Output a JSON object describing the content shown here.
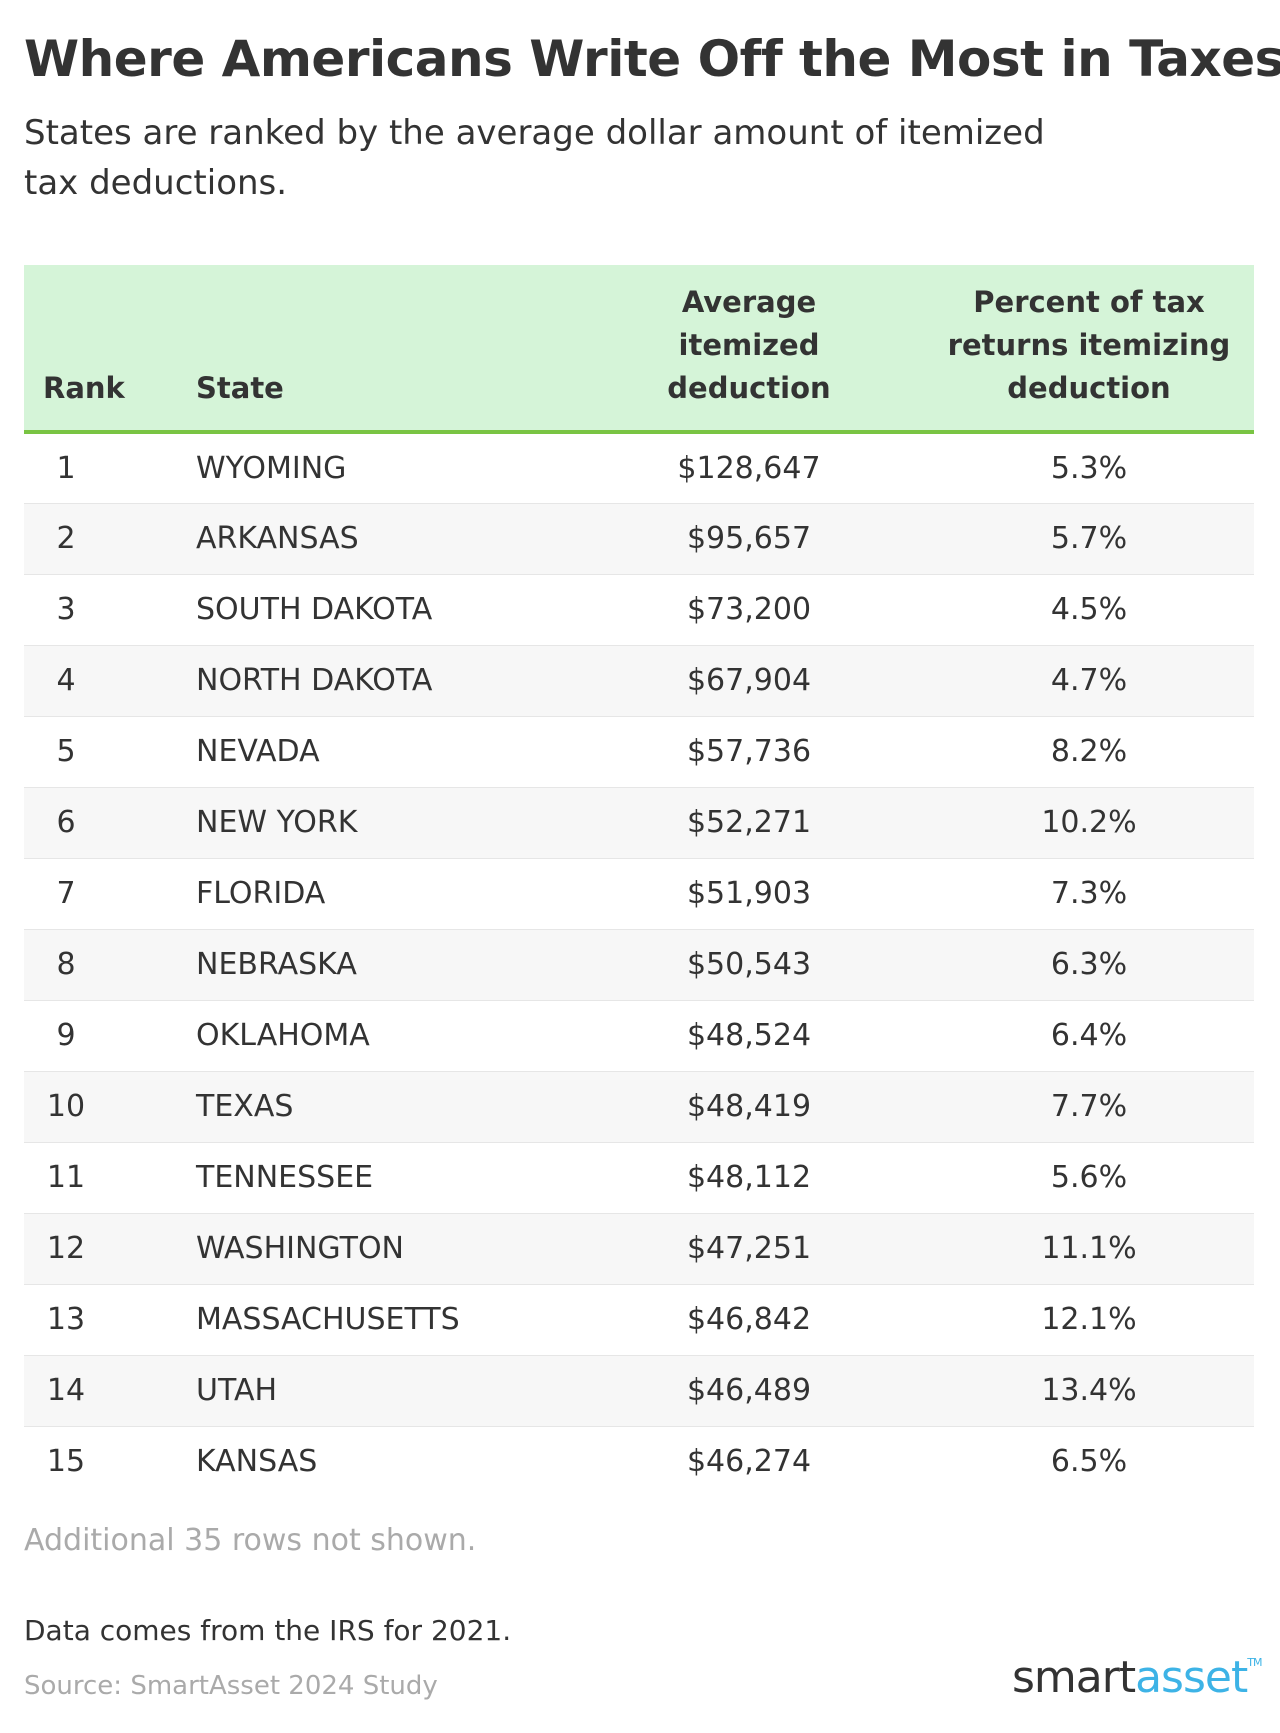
{
  "title": "Where Americans Write Off the Most in Taxes",
  "subtitle": "States are ranked by the average dollar amount of itemized tax deductions.",
  "table": {
    "headers": {
      "rank": "Rank",
      "state": "State",
      "avg": [
        "Average",
        "itemized",
        "deduction"
      ],
      "pct": [
        "Percent of tax",
        "returns itemizing",
        "deduction"
      ]
    },
    "rows": [
      {
        "rank": "1",
        "state": "WYOMING",
        "avg": "$128,647",
        "pct": "5.3%"
      },
      {
        "rank": "2",
        "state": "ARKANSAS",
        "avg": "$95,657",
        "pct": "5.7%"
      },
      {
        "rank": "3",
        "state": "SOUTH DAKOTA",
        "avg": "$73,200",
        "pct": "4.5%"
      },
      {
        "rank": "4",
        "state": "NORTH DAKOTA",
        "avg": "$67,904",
        "pct": "4.7%"
      },
      {
        "rank": "5",
        "state": "NEVADA",
        "avg": "$57,736",
        "pct": "8.2%"
      },
      {
        "rank": "6",
        "state": "NEW YORK",
        "avg": "$52,271",
        "pct": "10.2%"
      },
      {
        "rank": "7",
        "state": "FLORIDA",
        "avg": "$51,903",
        "pct": "7.3%"
      },
      {
        "rank": "8",
        "state": "NEBRASKA",
        "avg": "$50,543",
        "pct": "6.3%"
      },
      {
        "rank": "9",
        "state": "OKLAHOMA",
        "avg": "$48,524",
        "pct": "6.4%"
      },
      {
        "rank": "10",
        "state": "TEXAS",
        "avg": "$48,419",
        "pct": "7.7%"
      },
      {
        "rank": "11",
        "state": "TENNESSEE",
        "avg": "$48,112",
        "pct": "5.6%"
      },
      {
        "rank": "12",
        "state": "WASHINGTON",
        "avg": "$47,251",
        "pct": "11.1%"
      },
      {
        "rank": "13",
        "state": "MASSACHUSETTS",
        "avg": "$46,842",
        "pct": "12.1%"
      },
      {
        "rank": "14",
        "state": "UTAH",
        "avg": "$46,489",
        "pct": "13.4%"
      },
      {
        "rank": "15",
        "state": "KANSAS",
        "avg": "$46,274",
        "pct": "6.5%"
      }
    ]
  },
  "more_rows": "Additional 35 rows not shown.",
  "note": "Data comes from the IRS for 2021.",
  "source": "Source: SmartAsset 2024 Study",
  "logo": {
    "part1": "smart",
    "part2": "asset",
    "tm": "TM"
  },
  "colors": {
    "header_bg": "#d5f4d8",
    "header_rule": "#79c443",
    "logo_blue": "#3db3e6"
  }
}
